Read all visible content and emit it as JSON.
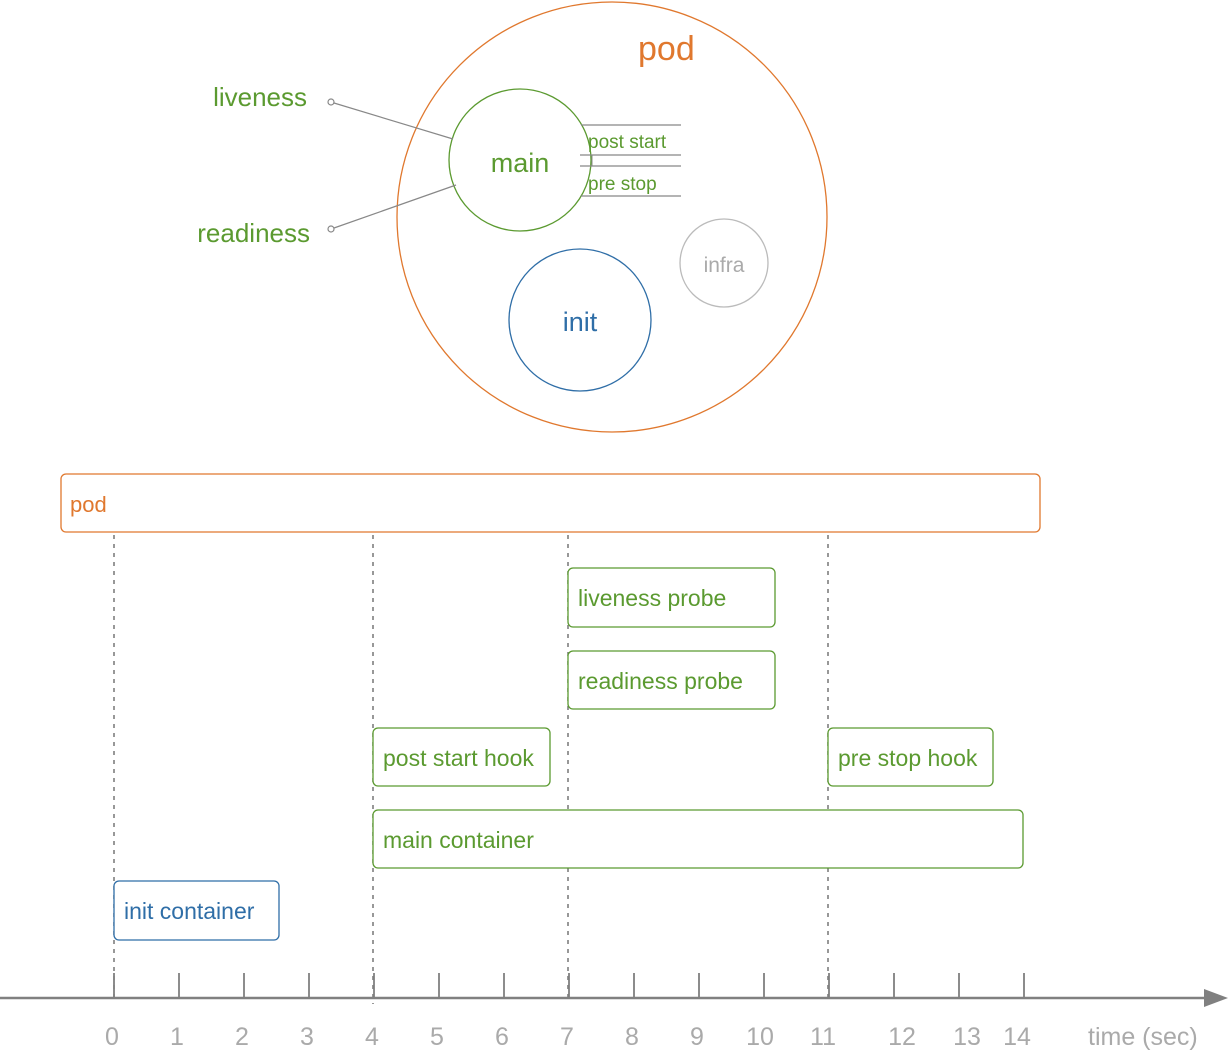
{
  "colors": {
    "pod": "#e0782e",
    "container": "#5b9a30",
    "init": "#2f6ea7",
    "infra": "#aaaaaa",
    "axis": "#808080"
  },
  "pod_diagram": {
    "pod_label": "pod",
    "main_label": "main",
    "init_label": "init",
    "infra_label": "infra",
    "post_start_label": "post start",
    "pre_stop_label": "pre stop",
    "liveness_label": "liveness",
    "readiness_label": "readiness"
  },
  "timeline": {
    "bars": [
      {
        "label": "pod"
      },
      {
        "label": "liveness probe"
      },
      {
        "label": "readiness probe"
      },
      {
        "label": "post start hook"
      },
      {
        "label": "pre stop hook"
      },
      {
        "label": "main container"
      },
      {
        "label": "init container"
      }
    ],
    "ticks": [
      "0",
      "1",
      "2",
      "3",
      "4",
      "5",
      "6",
      "7",
      "8",
      "9",
      "10",
      "11",
      "12",
      "13",
      "14"
    ],
    "axis_label": "time (sec)"
  }
}
